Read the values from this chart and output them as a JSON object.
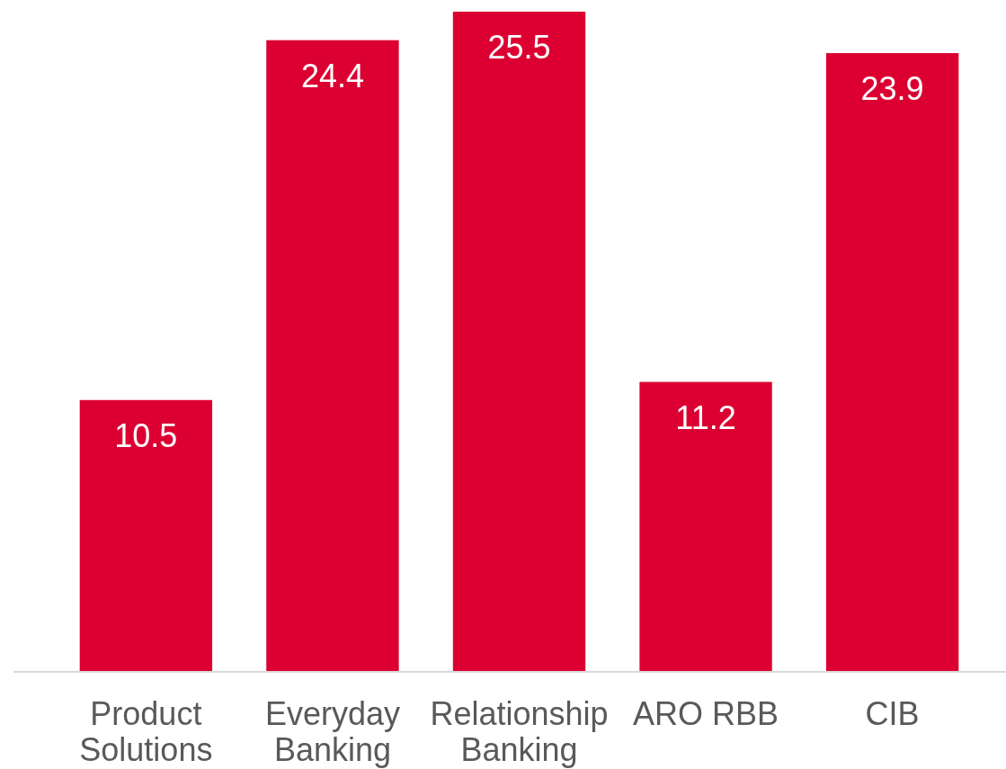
{
  "chart_data": {
    "type": "bar",
    "categories": [
      "Product Solutions",
      "Everyday Banking",
      "Relationship Banking",
      "ARO RBB",
      "CIB"
    ],
    "values": [
      10.5,
      24.4,
      25.5,
      11.2,
      23.9
    ],
    "color": "#dc0032",
    "data_labels": true
  }
}
